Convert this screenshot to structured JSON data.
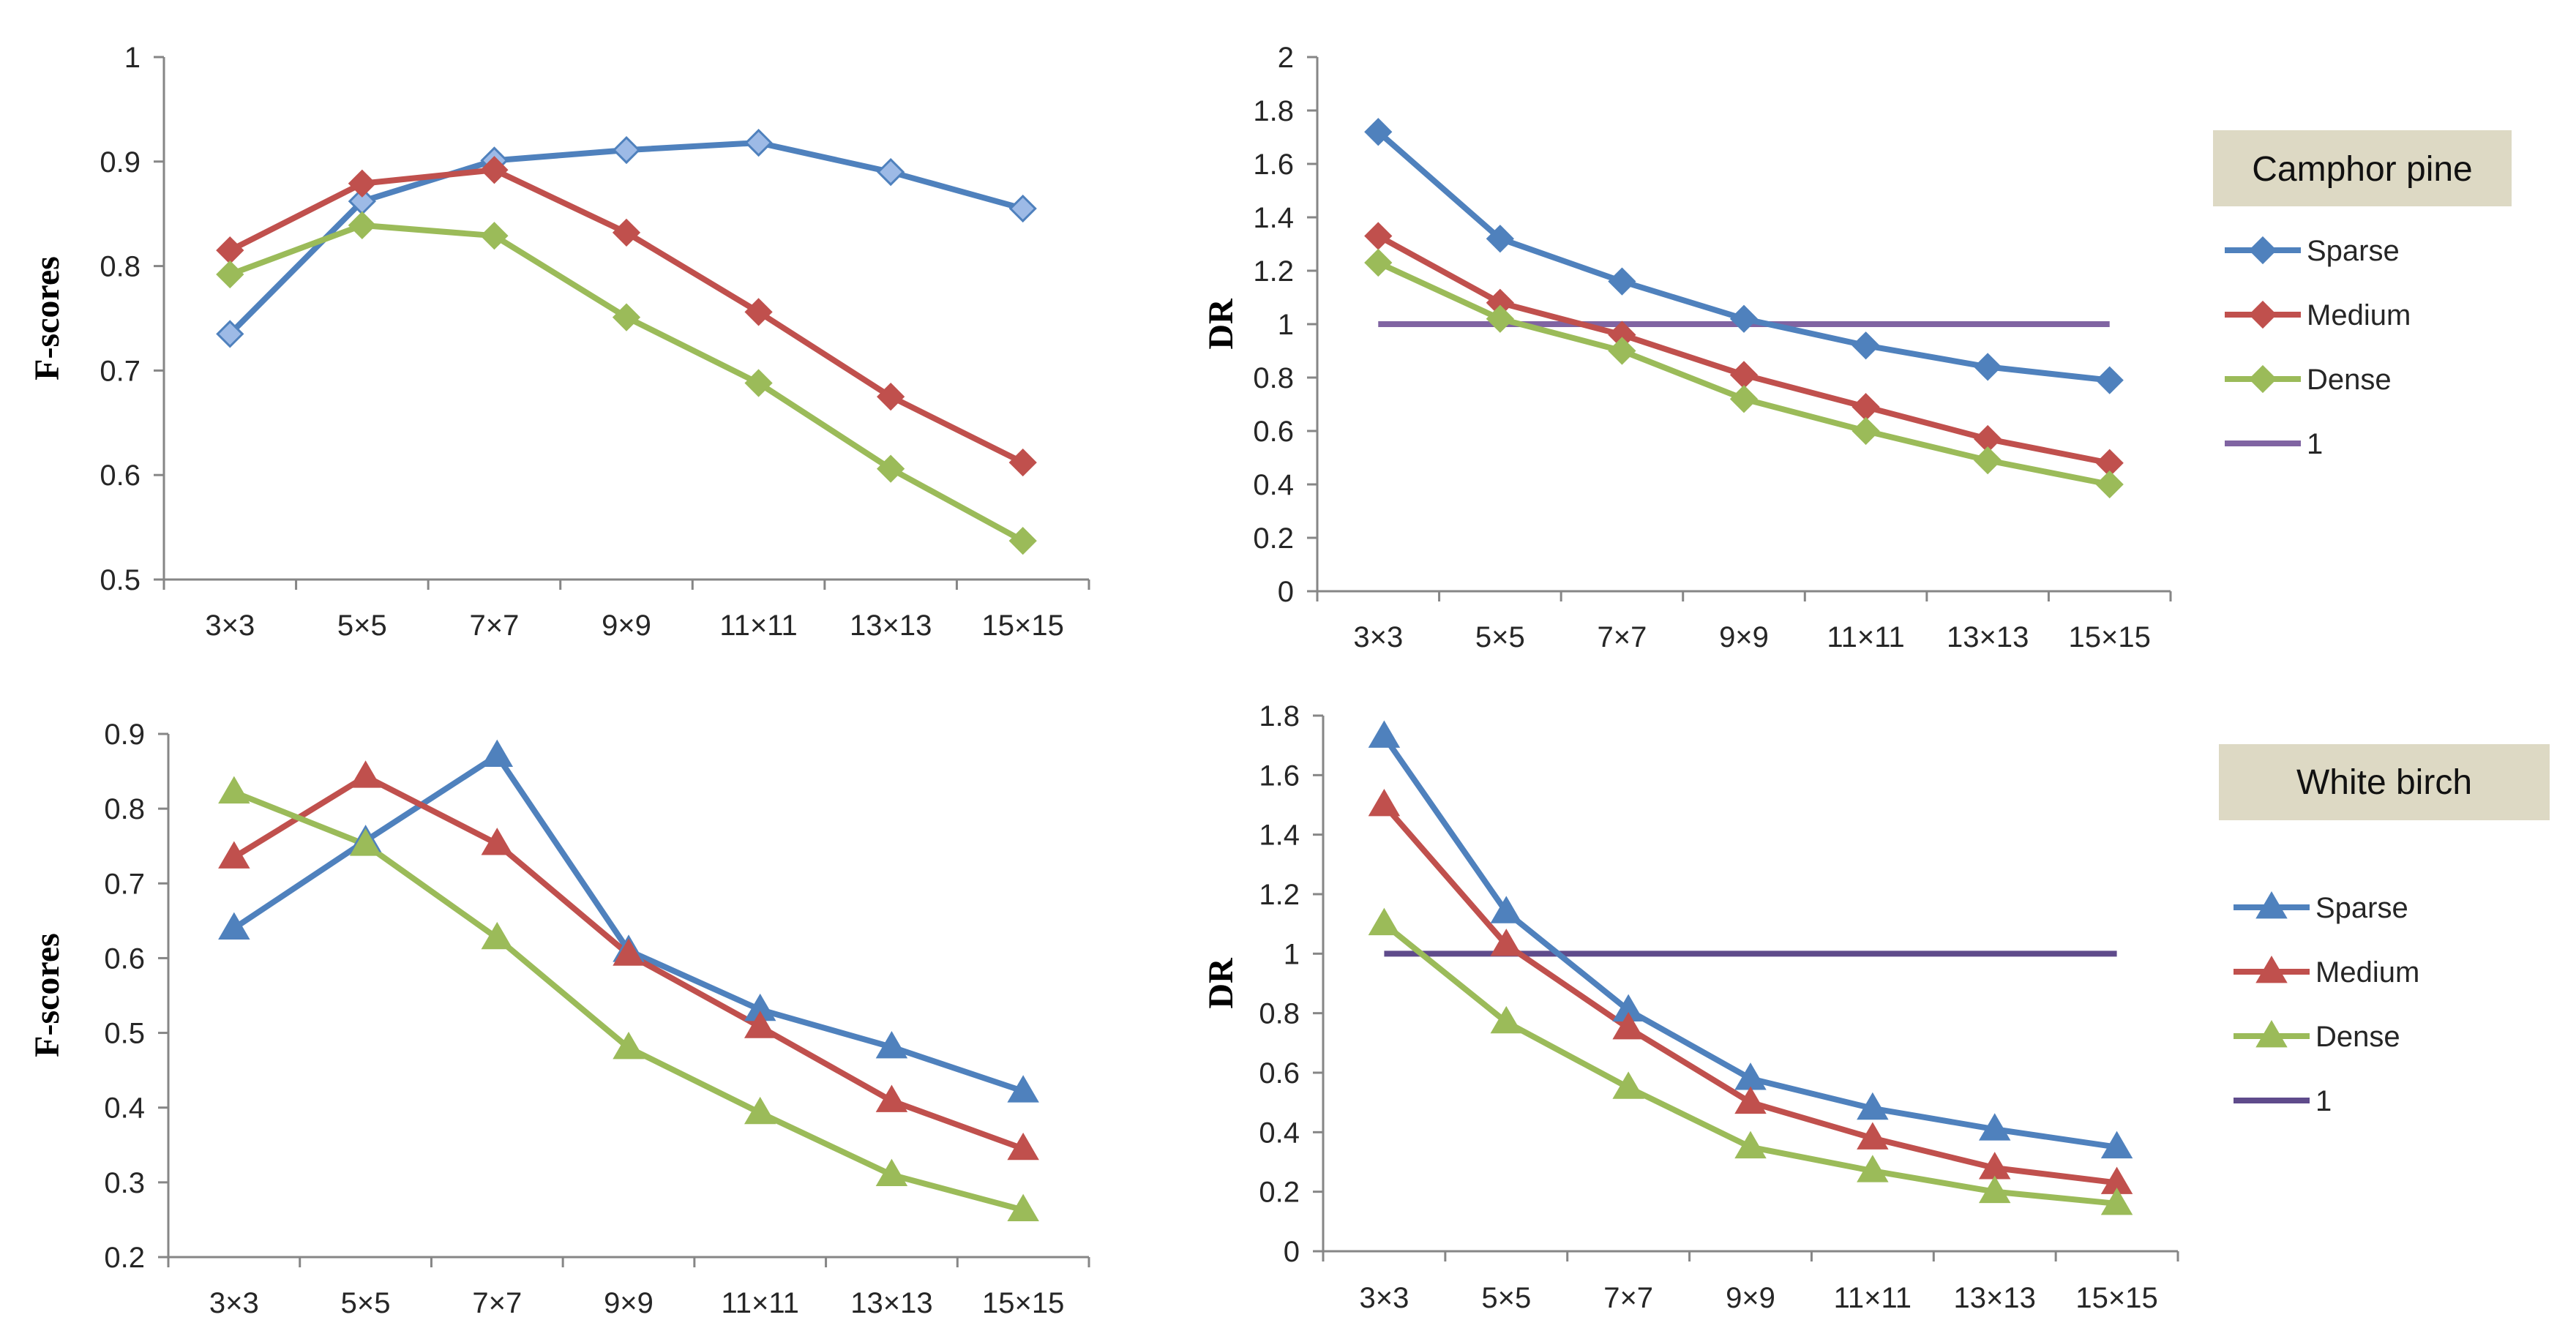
{
  "colors": {
    "sparse": "#4F81BD",
    "sparse_light_fill": "#9DBAE6",
    "medium": "#C0504D",
    "dense": "#9BBB59",
    "one": "#8064A2",
    "one_dark": "#5F4B8B",
    "species_box": "#DDD9C4"
  },
  "chart_data": [
    {
      "id": "chart-a",
      "type": "line",
      "marker": "diamond-light",
      "title": "",
      "xlabel": "",
      "ylabel": "F-scores",
      "categories": [
        "3×3",
        "5×5",
        "7×7",
        "9×9",
        "11×11",
        "13×13",
        "15×15"
      ],
      "ylim": [
        0.5,
        1
      ],
      "yticks": [
        "0.5",
        "0.6",
        "0.7",
        "0.8",
        "0.9",
        "1"
      ],
      "series": [
        {
          "name": "Sparse",
          "key": "sparse",
          "values": [
            0.735,
            0.862,
            0.901,
            0.911,
            0.918,
            0.89,
            0.855
          ]
        },
        {
          "name": "Medium",
          "key": "medium",
          "values": [
            0.815,
            0.879,
            0.892,
            0.832,
            0.756,
            0.675,
            0.612
          ]
        },
        {
          "name": "Dense",
          "key": "dense",
          "values": [
            0.792,
            0.839,
            0.829,
            0.751,
            0.688,
            0.606,
            0.537
          ]
        }
      ]
    },
    {
      "id": "chart-b",
      "type": "line",
      "marker": "diamond",
      "title": "",
      "xlabel": "",
      "ylabel": "DR",
      "categories": [
        "3×3",
        "5×5",
        "7×7",
        "9×9",
        "11×11",
        "13×13",
        "15×15"
      ],
      "ylim": [
        0,
        2
      ],
      "yticks": [
        "0",
        "0.2",
        "0.4",
        "0.6",
        "0.8",
        "1",
        "1.2",
        "1.4",
        "1.6",
        "1.8",
        "2"
      ],
      "series": [
        {
          "name": "Sparse",
          "key": "sparse",
          "values": [
            1.72,
            1.32,
            1.16,
            1.02,
            0.92,
            0.84,
            0.79
          ]
        },
        {
          "name": "Medium",
          "key": "medium",
          "values": [
            1.33,
            1.08,
            0.96,
            0.81,
            0.69,
            0.57,
            0.48
          ]
        },
        {
          "name": "Dense",
          "key": "dense",
          "values": [
            1.23,
            1.02,
            0.9,
            0.72,
            0.6,
            0.49,
            0.4
          ]
        },
        {
          "name": "1",
          "key": "one",
          "values": [
            1,
            1,
            1,
            1,
            1,
            1,
            1
          ],
          "no_marker": true
        }
      ]
    },
    {
      "id": "chart-c",
      "type": "line",
      "marker": "triangle",
      "title": "",
      "xlabel": "",
      "ylabel": "F-scores",
      "categories": [
        "3×3",
        "5×5",
        "7×7",
        "9×9",
        "11×11",
        "13×13",
        "15×15"
      ],
      "ylim": [
        0.2,
        0.9
      ],
      "yticks": [
        "0.2",
        "0.3",
        "0.4",
        "0.5",
        "0.6",
        "0.7",
        "0.8",
        "0.9"
      ],
      "series": [
        {
          "name": "Sparse",
          "key": "sparse",
          "values": [
            0.64,
            0.757,
            0.871,
            0.61,
            0.531,
            0.481,
            0.422
          ]
        },
        {
          "name": "Medium",
          "key": "medium",
          "values": [
            0.735,
            0.843,
            0.753,
            0.605,
            0.508,
            0.409,
            0.345
          ]
        },
        {
          "name": "Dense",
          "key": "dense",
          "values": [
            0.822,
            0.752,
            0.627,
            0.48,
            0.393,
            0.31,
            0.263
          ]
        }
      ]
    },
    {
      "id": "chart-d",
      "type": "line",
      "marker": "triangle",
      "title": "",
      "xlabel": "",
      "ylabel": "DR",
      "categories": [
        "3×3",
        "5×5",
        "7×7",
        "9×9",
        "11×11",
        "13×13",
        "15×15"
      ],
      "ylim": [
        0,
        1.8
      ],
      "yticks": [
        "0",
        "0.2",
        "0.4",
        "0.6",
        "0.8",
        "1",
        "1.2",
        "1.4",
        "1.6",
        "1.8"
      ],
      "series": [
        {
          "name": "Sparse",
          "key": "sparse",
          "values": [
            1.73,
            1.14,
            0.81,
            0.58,
            0.48,
            0.41,
            0.35
          ]
        },
        {
          "name": "Medium",
          "key": "medium",
          "values": [
            1.5,
            1.03,
            0.75,
            0.5,
            0.38,
            0.28,
            0.23
          ]
        },
        {
          "name": "Dense",
          "key": "dense",
          "values": [
            1.1,
            0.77,
            0.55,
            0.35,
            0.27,
            0.2,
            0.16
          ]
        },
        {
          "name": "1",
          "key": "one_dark",
          "values": [
            1,
            1,
            1,
            1,
            1,
            1,
            1
          ],
          "no_marker": true
        }
      ]
    }
  ],
  "species": [
    {
      "label": "Camphor pine"
    },
    {
      "label": "White birch"
    }
  ],
  "legends": [
    {
      "items": [
        {
          "label": "Sparse",
          "key": "sparse"
        },
        {
          "label": "Medium",
          "key": "medium"
        },
        {
          "label": "Dense",
          "key": "dense"
        },
        {
          "label": "1",
          "key": "one"
        }
      ]
    },
    {
      "items": [
        {
          "label": "Sparse",
          "key": "sparse"
        },
        {
          "label": "Medium",
          "key": "medium"
        },
        {
          "label": "Dense",
          "key": "dense"
        },
        {
          "label": "1",
          "key": "one_dark"
        }
      ]
    }
  ]
}
